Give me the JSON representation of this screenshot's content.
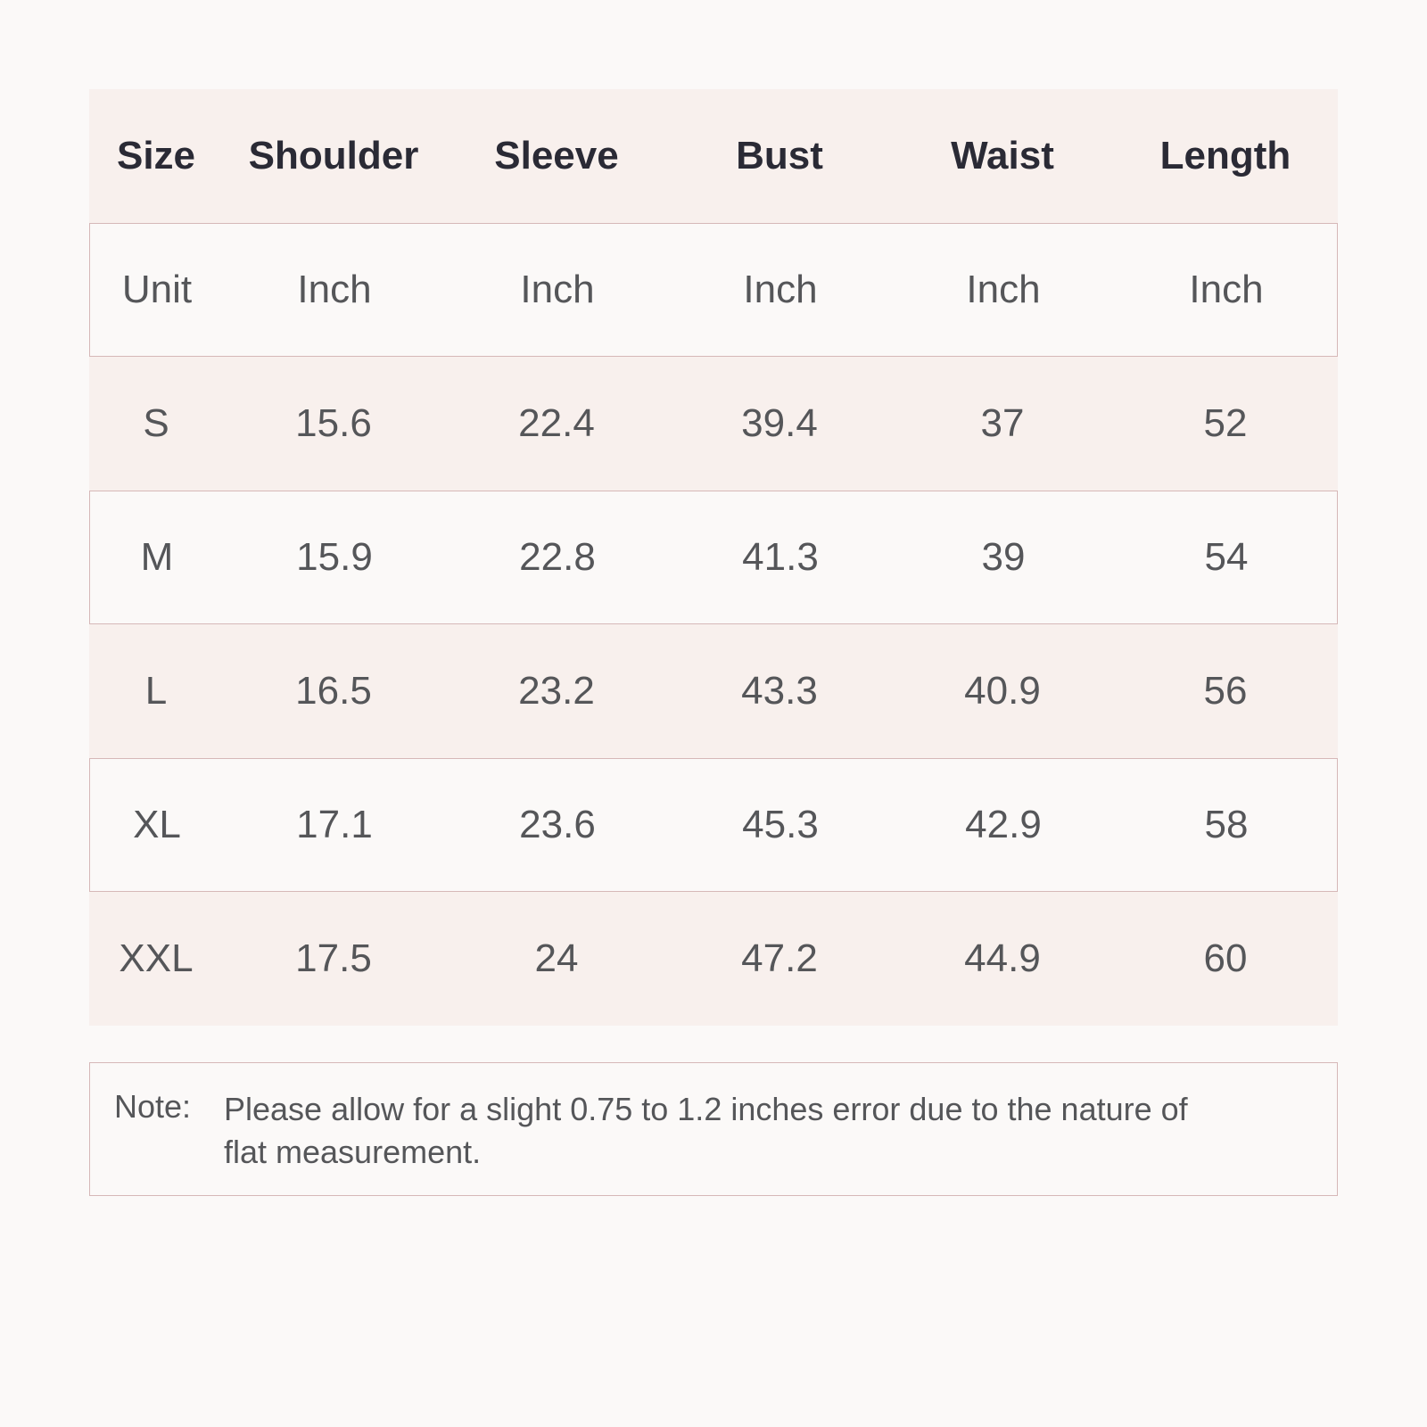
{
  "table": {
    "header": [
      "Size",
      "Shoulder",
      "Sleeve",
      "Bust",
      "Waist",
      "Length"
    ],
    "rows": [
      [
        "Unit",
        "Inch",
        "Inch",
        "Inch",
        "Inch",
        "Inch"
      ],
      [
        "S",
        "15.6",
        "22.4",
        "39.4",
        "37",
        "52"
      ],
      [
        "M",
        "15.9",
        "22.8",
        "41.3",
        "39",
        "54"
      ],
      [
        "L",
        "16.5",
        "23.2",
        "43.3",
        "40.9",
        "56"
      ],
      [
        "XL",
        "17.1",
        "23.6",
        "45.3",
        "42.9",
        "58"
      ],
      [
        "XXL",
        "17.5",
        "24",
        "47.2",
        "44.9",
        "60"
      ]
    ]
  },
  "note": {
    "label": "Note:",
    "text": "Please allow for a slight 0.75 to 1.2 inches error due to the nature of flat measurement."
  }
}
